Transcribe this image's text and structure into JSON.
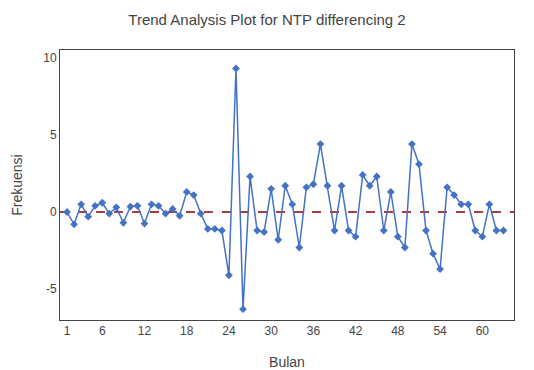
{
  "chart_data": {
    "type": "line",
    "title": "Trend Analysis Plot for NTP differencing 2",
    "x_label": "Bulan",
    "y_label": "Frekuensi",
    "x": [
      1,
      2,
      3,
      4,
      5,
      6,
      7,
      8,
      9,
      10,
      11,
      12,
      13,
      14,
      15,
      16,
      17,
      18,
      19,
      20,
      21,
      22,
      23,
      24,
      25,
      26,
      27,
      28,
      29,
      30,
      31,
      32,
      33,
      34,
      35,
      36,
      37,
      38,
      39,
      40,
      41,
      42,
      43,
      44,
      45,
      46,
      47,
      48,
      49,
      50,
      51,
      52,
      53,
      54,
      55,
      56,
      57,
      58,
      59,
      60,
      61,
      62,
      63
    ],
    "values": [
      0.0,
      -0.8,
      0.5,
      -0.3,
      0.4,
      0.6,
      -0.1,
      0.3,
      -0.7,
      0.35,
      0.4,
      -0.75,
      0.5,
      0.4,
      -0.1,
      0.2,
      -0.25,
      1.3,
      1.1,
      -0.1,
      -1.1,
      -1.1,
      -1.2,
      -4.1,
      9.3,
      -6.3,
      2.3,
      -1.2,
      -1.3,
      1.5,
      -1.8,
      1.7,
      0.5,
      -2.3,
      1.6,
      1.8,
      4.4,
      1.7,
      -1.2,
      1.7,
      -1.2,
      -1.6,
      2.4,
      1.7,
      2.3,
      -1.2,
      1.3,
      -1.6,
      -2.3,
      4.4,
      3.1,
      -1.2,
      -2.7,
      -3.7,
      1.6,
      1.1,
      0.5,
      0.5,
      -1.2,
      -1.6,
      0.5,
      -1.2,
      -1.2
    ],
    "color": "#4472c4",
    "marker": "diamond",
    "reference_line": {
      "value": 0,
      "color": "#8b0000",
      "line_style": "dashed"
    },
    "xlim": [
      0.0,
      64.5
    ],
    "xticks": [
      1,
      6,
      12,
      18,
      24,
      30,
      36,
      42,
      48,
      54,
      60
    ],
    "ylim": [
      -7.0,
      10.5
    ],
    "yticks": [
      -5,
      0,
      5,
      10
    ],
    "grid": false
  }
}
